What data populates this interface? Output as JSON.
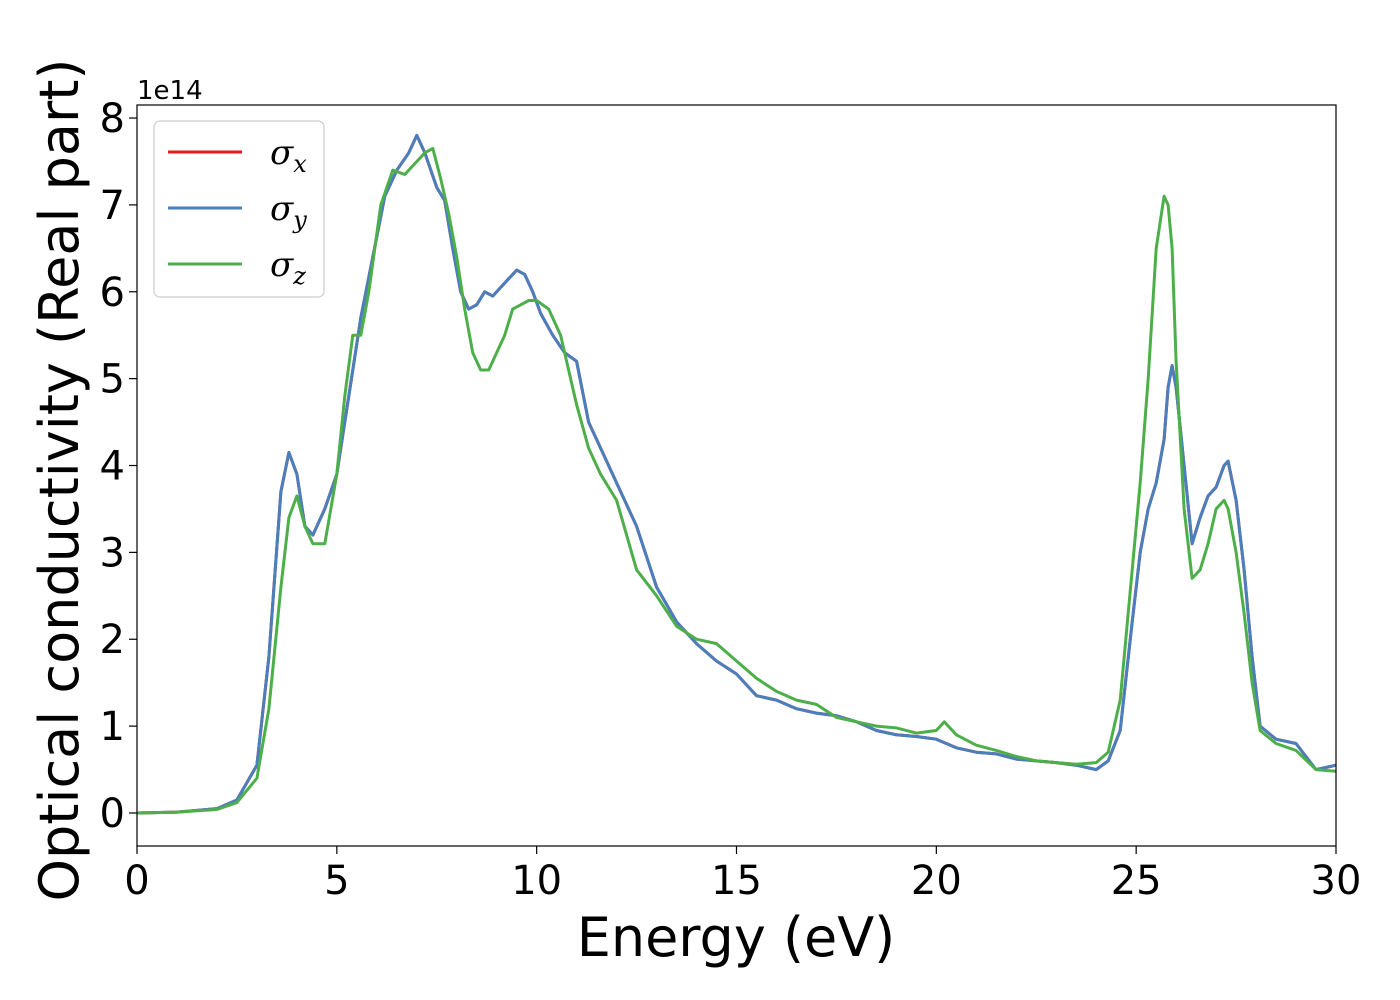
{
  "chart_data": {
    "type": "line",
    "xlabel": "Energy (eV)",
    "ylabel": "Optical conductivity (Real part)",
    "y_offset_label": "1e14",
    "xlim": [
      0,
      30
    ],
    "ylim": [
      -0.38,
      8.15
    ],
    "xticks": [
      0,
      5,
      10,
      15,
      20,
      25,
      30
    ],
    "yticks": [
      0,
      1,
      2,
      3,
      4,
      5,
      6,
      7,
      8
    ],
    "grid": false,
    "legend_position": "top-left",
    "series": [
      {
        "name": "σx",
        "legend_base": "σ",
        "legend_sub": "x",
        "color": "#e41a1c",
        "x": [
          0,
          1,
          2,
          2.5,
          3,
          3.3,
          3.6,
          3.8,
          4.0,
          4.2,
          4.4,
          4.7,
          5.0,
          5.3,
          5.6,
          5.9,
          6.2,
          6.5,
          6.8,
          7.0,
          7.2,
          7.5,
          7.7,
          7.9,
          8.1,
          8.3,
          8.5,
          8.7,
          8.9,
          9.1,
          9.3,
          9.5,
          9.7,
          9.9,
          10.1,
          10.4,
          10.7,
          11.0,
          11.3,
          11.6,
          12.0,
          12.5,
          13.0,
          13.5,
          14.0,
          14.5,
          15.0,
          15.5,
          16.0,
          16.5,
          17.0,
          17.5,
          18.0,
          18.5,
          19.0,
          19.5,
          20.0,
          20.5,
          21.0,
          21.5,
          22.0,
          22.5,
          23.0,
          23.5,
          24.0,
          24.3,
          24.6,
          24.9,
          25.1,
          25.3,
          25.5,
          25.7,
          25.8,
          25.9,
          26.0,
          26.2,
          26.4,
          26.6,
          26.8,
          27.0,
          27.2,
          27.3,
          27.5,
          27.7,
          27.9,
          28.1,
          28.5,
          29.0,
          29.5,
          30.0
        ],
        "values": [
          0,
          0.01,
          0.05,
          0.15,
          0.55,
          1.8,
          3.7,
          4.15,
          3.9,
          3.3,
          3.2,
          3.5,
          3.9,
          4.8,
          5.7,
          6.4,
          7.1,
          7.4,
          7.6,
          7.8,
          7.6,
          7.2,
          7.05,
          6.5,
          6.0,
          5.8,
          5.85,
          6.0,
          5.95,
          6.05,
          6.15,
          6.25,
          6.2,
          6.0,
          5.75,
          5.5,
          5.3,
          5.2,
          4.5,
          4.2,
          3.8,
          3.3,
          2.6,
          2.2,
          1.95,
          1.75,
          1.6,
          1.35,
          1.3,
          1.2,
          1.15,
          1.12,
          1.05,
          0.95,
          0.9,
          0.88,
          0.85,
          0.75,
          0.7,
          0.68,
          0.62,
          0.6,
          0.58,
          0.55,
          0.5,
          0.6,
          0.95,
          2.2,
          3.0,
          3.5,
          3.8,
          4.3,
          4.9,
          5.15,
          4.9,
          4.0,
          3.1,
          3.4,
          3.65,
          3.75,
          4.0,
          4.05,
          3.6,
          2.8,
          1.8,
          1.0,
          0.85,
          0.8,
          0.5,
          0.55
        ]
      },
      {
        "name": "σy",
        "legend_base": "σ",
        "legend_sub": "y",
        "color": "#4a7fbd",
        "x": [
          0,
          1,
          2,
          2.5,
          3,
          3.3,
          3.6,
          3.8,
          4.0,
          4.2,
          4.4,
          4.7,
          5.0,
          5.3,
          5.6,
          5.9,
          6.2,
          6.5,
          6.8,
          7.0,
          7.2,
          7.5,
          7.7,
          7.9,
          8.1,
          8.3,
          8.5,
          8.7,
          8.9,
          9.1,
          9.3,
          9.5,
          9.7,
          9.9,
          10.1,
          10.4,
          10.7,
          11.0,
          11.3,
          11.6,
          12.0,
          12.5,
          13.0,
          13.5,
          14.0,
          14.5,
          15.0,
          15.5,
          16.0,
          16.5,
          17.0,
          17.5,
          18.0,
          18.5,
          19.0,
          19.5,
          20.0,
          20.5,
          21.0,
          21.5,
          22.0,
          22.5,
          23.0,
          23.5,
          24.0,
          24.3,
          24.6,
          24.9,
          25.1,
          25.3,
          25.5,
          25.7,
          25.8,
          25.9,
          26.0,
          26.2,
          26.4,
          26.6,
          26.8,
          27.0,
          27.2,
          27.3,
          27.5,
          27.7,
          27.9,
          28.1,
          28.5,
          29.0,
          29.5,
          30.0
        ],
        "values": [
          0,
          0.01,
          0.05,
          0.15,
          0.55,
          1.8,
          3.7,
          4.15,
          3.9,
          3.3,
          3.2,
          3.5,
          3.9,
          4.8,
          5.7,
          6.4,
          7.1,
          7.4,
          7.6,
          7.8,
          7.6,
          7.2,
          7.05,
          6.5,
          6.0,
          5.8,
          5.85,
          6.0,
          5.95,
          6.05,
          6.15,
          6.25,
          6.2,
          6.0,
          5.75,
          5.5,
          5.3,
          5.2,
          4.5,
          4.2,
          3.8,
          3.3,
          2.6,
          2.2,
          1.95,
          1.75,
          1.6,
          1.35,
          1.3,
          1.2,
          1.15,
          1.12,
          1.05,
          0.95,
          0.9,
          0.88,
          0.85,
          0.75,
          0.7,
          0.68,
          0.62,
          0.6,
          0.58,
          0.55,
          0.5,
          0.6,
          0.95,
          2.2,
          3.0,
          3.5,
          3.8,
          4.3,
          4.9,
          5.15,
          4.9,
          4.0,
          3.1,
          3.4,
          3.65,
          3.75,
          4.0,
          4.05,
          3.6,
          2.8,
          1.8,
          1.0,
          0.85,
          0.8,
          0.5,
          0.55
        ]
      },
      {
        "name": "σz",
        "legend_base": "σ",
        "legend_sub": "z",
        "color": "#4daf4a",
        "x": [
          0,
          1,
          2,
          2.5,
          3,
          3.3,
          3.6,
          3.8,
          4.0,
          4.2,
          4.4,
          4.7,
          5.0,
          5.2,
          5.4,
          5.6,
          5.8,
          6.1,
          6.4,
          6.7,
          7.0,
          7.2,
          7.4,
          7.6,
          7.8,
          8.0,
          8.2,
          8.4,
          8.6,
          8.8,
          9.0,
          9.2,
          9.4,
          9.6,
          9.8,
          10.0,
          10.3,
          10.6,
          11.0,
          11.3,
          11.6,
          12.0,
          12.5,
          13.0,
          13.5,
          14.0,
          14.5,
          15.0,
          15.5,
          16.0,
          16.5,
          17.0,
          17.5,
          18.0,
          18.5,
          19.0,
          19.5,
          20.0,
          20.2,
          20.5,
          21.0,
          21.5,
          22.0,
          22.5,
          23.0,
          23.5,
          24.0,
          24.3,
          24.6,
          24.9,
          25.1,
          25.3,
          25.5,
          25.7,
          25.8,
          25.9,
          26.0,
          26.2,
          26.4,
          26.6,
          26.8,
          27.0,
          27.2,
          27.3,
          27.5,
          27.7,
          27.9,
          28.1,
          28.5,
          29.0,
          29.5,
          30.0
        ],
        "values": [
          0,
          0.01,
          0.04,
          0.12,
          0.4,
          1.2,
          2.6,
          3.4,
          3.65,
          3.3,
          3.1,
          3.1,
          3.9,
          4.8,
          5.5,
          5.5,
          6.0,
          7.0,
          7.4,
          7.35,
          7.5,
          7.6,
          7.65,
          7.3,
          6.9,
          6.4,
          5.8,
          5.3,
          5.1,
          5.1,
          5.3,
          5.5,
          5.8,
          5.85,
          5.9,
          5.9,
          5.8,
          5.5,
          4.7,
          4.2,
          3.9,
          3.6,
          2.8,
          2.5,
          2.15,
          2.0,
          1.95,
          1.75,
          1.55,
          1.4,
          1.3,
          1.25,
          1.1,
          1.05,
          1.0,
          0.98,
          0.92,
          0.95,
          1.05,
          0.9,
          0.78,
          0.72,
          0.65,
          0.6,
          0.58,
          0.56,
          0.58,
          0.7,
          1.3,
          2.8,
          3.8,
          5.0,
          6.5,
          7.1,
          7.0,
          6.5,
          5.2,
          3.5,
          2.7,
          2.8,
          3.1,
          3.5,
          3.6,
          3.5,
          3.0,
          2.3,
          1.5,
          0.95,
          0.8,
          0.72,
          0.5,
          0.48
        ]
      }
    ]
  }
}
